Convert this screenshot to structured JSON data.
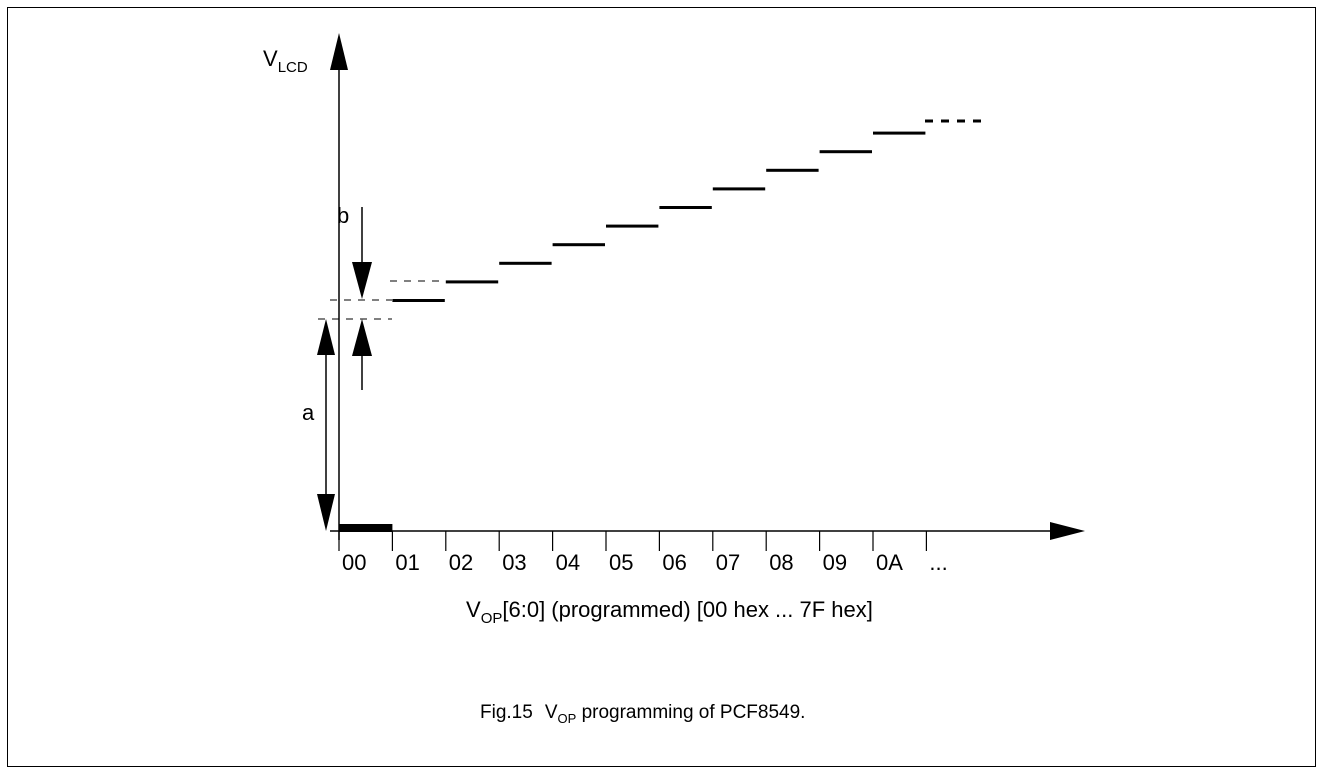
{
  "diagram": {
    "y_axis_label": {
      "main": "V",
      "sub": "LCD"
    },
    "x_axis_label": {
      "main": "V",
      "sub": "OP",
      "rest": "[6:0] (programmed) [00 hex ... 7F hex]"
    },
    "tick_labels": [
      "00",
      "01",
      "02",
      "03",
      "04",
      "05",
      "06",
      "07",
      "08",
      "09",
      "0A",
      "..."
    ],
    "dimension_a": "a",
    "dimension_b": "b",
    "step_levels": [
      0,
      1,
      2,
      3,
      4,
      5,
      6,
      7,
      8,
      9,
      10
    ]
  },
  "caption": {
    "prefix": "Fig.15",
    "main": "V",
    "sub": "OP",
    "rest": " programming of PCF8549."
  }
}
